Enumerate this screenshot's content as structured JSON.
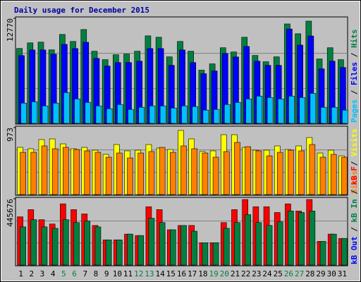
{
  "chart_data": {
    "type": "bar",
    "title": "Daily usage for December 2015",
    "title_color": "#0000a0",
    "categories": [
      "1",
      "2",
      "3",
      "4",
      "5",
      "6",
      "7",
      "8",
      "9",
      "10",
      "11",
      "12",
      "13",
      "14",
      "15",
      "16",
      "17",
      "18",
      "19",
      "20",
      "21",
      "22",
      "23",
      "24",
      "25",
      "26",
      "27",
      "28",
      "29",
      "30",
      "31"
    ],
    "category_colors": [
      "#000000",
      "#000000",
      "#000000",
      "#000000",
      "#008040",
      "#008040",
      "#000000",
      "#000000",
      "#000000",
      "#000000",
      "#000000",
      "#008040",
      "#008040",
      "#000000",
      "#000000",
      "#000000",
      "#000000",
      "#000000",
      "#008040",
      "#008040",
      "#000000",
      "#000000",
      "#000000",
      "#000000",
      "#000000",
      "#008040",
      "#008040",
      "#000000",
      "#000000",
      "#000000",
      "#000000"
    ],
    "panels": [
      {
        "ylim": [
          0,
          12770
        ],
        "yticks": [
          12770
        ],
        "series": [
          {
            "name": "Hits",
            "color": "#008040",
            "values": [
              9109,
              9790,
              9875,
              8939,
              10812,
              9960,
              11408,
              8769,
              7747,
              8343,
              8428,
              8769,
              10641,
              10471,
              8087,
              9960,
              8769,
              6470,
              7236,
              9194,
              8683,
              10471,
              8258,
              7491,
              8087,
              12088,
              10897,
              12429,
              7832,
              9194,
              7747
            ]
          },
          {
            "name": "Files",
            "color": "#0000ff",
            "values": [
              8245,
              8925,
              8925,
              8415,
              9605,
              9095,
              9860,
              7905,
              6970,
              7395,
              7395,
              7565,
              9095,
              9095,
              7055,
              8925,
              7395,
              6035,
              6375,
              8500,
              8075,
              9350,
              7565,
              7055,
              7055,
              11475,
              9520,
              10625,
              6630,
              7565,
              6800
            ]
          },
          {
            "name": "Pages",
            "color": "#00c0ff",
            "values": [
              2465,
              2635,
              2125,
              2465,
              3740,
              2975,
              2550,
              2125,
              1785,
              2295,
              1700,
              1955,
              2125,
              2125,
              1870,
              2125,
              2040,
              1615,
              1700,
              2295,
              2550,
              2975,
              3315,
              3145,
              2975,
              3315,
              3145,
              3655,
              1955,
              1955,
              1615
            ]
          }
        ]
      },
      {
        "ylim": [
          0,
          973
        ],
        "yticks": [
          973
        ],
        "series": [
          {
            "name": "Visits",
            "color": "#ffff00",
            "values": [
              686,
              666,
              799,
              809,
              737,
              666,
              686,
              645,
              584,
              727,
              635,
              645,
              727,
              676,
              655,
              932,
              809,
              625,
              635,
              870,
              870,
              686,
              645,
              645,
              707,
              655,
              707,
              829,
              604,
              645,
              563
            ]
          },
          {
            "name": "Sites",
            "color": "#ff8000",
            "values": [
              614,
              614,
              707,
              666,
              686,
              655,
              635,
              614,
              543,
              604,
              532,
              604,
              625,
              686,
              614,
              707,
              666,
              604,
              543,
              625,
              758,
              696,
              635,
              563,
              614,
              645,
              635,
              727,
              543,
              584,
              543
            ]
          }
        ]
      },
      {
        "ylim": [
          0,
          445676
        ],
        "yticks": [
          445676
        ],
        "series": [
          {
            "name": "kB F",
            "color": "#ff0000",
            "values": [
              324548,
              372988,
              305172,
              276108,
              411740,
              372988,
              343924,
              266420,
              169540,
              169540,
              208292,
              198604,
              392364,
              372988,
              237356,
              266420,
              266420,
              150164,
              150164,
              285796,
              372988,
              440804,
              392364,
              392364,
              353612,
              411740,
              363300,
              440804,
              159852,
              208292,
              179228
            ]
          },
          {
            "name": "kB In",
            "color": "#008040",
            "values": [
              256732,
              305172,
              256732,
              247044,
              305172,
              285796,
              295484,
              256732,
              169540,
              169540,
              208292,
              198604,
              314860,
              285796,
              237356,
              266420,
              227668,
              150164,
              150164,
              247044,
              285796,
              339080,
              285796,
              266420,
              290640,
              363300,
              353612,
              363300,
              159852,
              208292,
              179228
            ]
          }
        ],
        "extra_legend": {
          "text": "kB Out",
          "color": "#0000ff"
        }
      }
    ]
  }
}
